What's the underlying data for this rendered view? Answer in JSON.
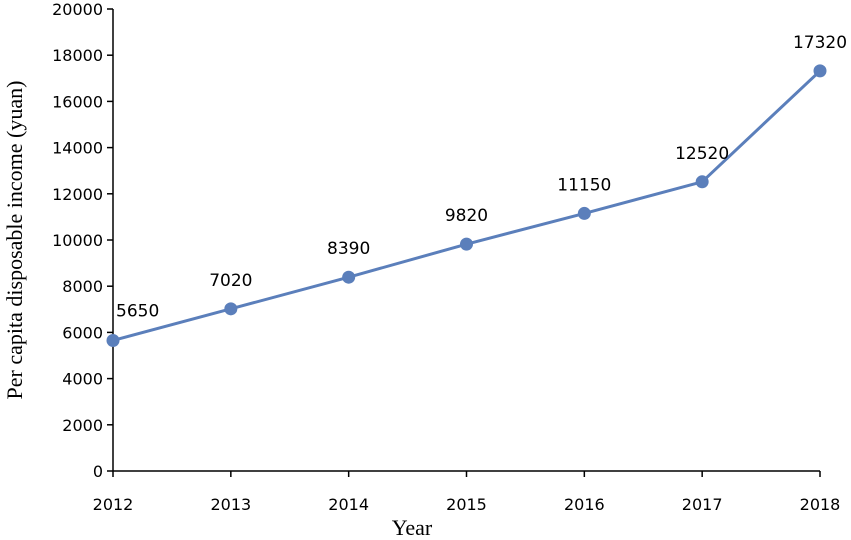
{
  "chart_data": {
    "type": "line",
    "title": "",
    "xlabel": "Year",
    "ylabel": "Per capita disposable income (yuan)",
    "x": [
      "2012",
      "2013",
      "2014",
      "2015",
      "2016",
      "2017",
      "2018"
    ],
    "series": [
      {
        "values": [
          5650,
          7020,
          8390,
          9820,
          11150,
          12520,
          17320
        ],
        "color": "#5b7fbb"
      }
    ],
    "data_labels": [
      "5650",
      "7020",
      "8390",
      "9820",
      "11150",
      "12520",
      "17320"
    ],
    "ylim": [
      0,
      20000
    ],
    "yticks": [
      "0",
      "2000",
      "4000",
      "6000",
      "8000",
      "10000",
      "12000",
      "14000",
      "16000",
      "18000",
      "20000"
    ],
    "grid": false,
    "legend": "none"
  }
}
